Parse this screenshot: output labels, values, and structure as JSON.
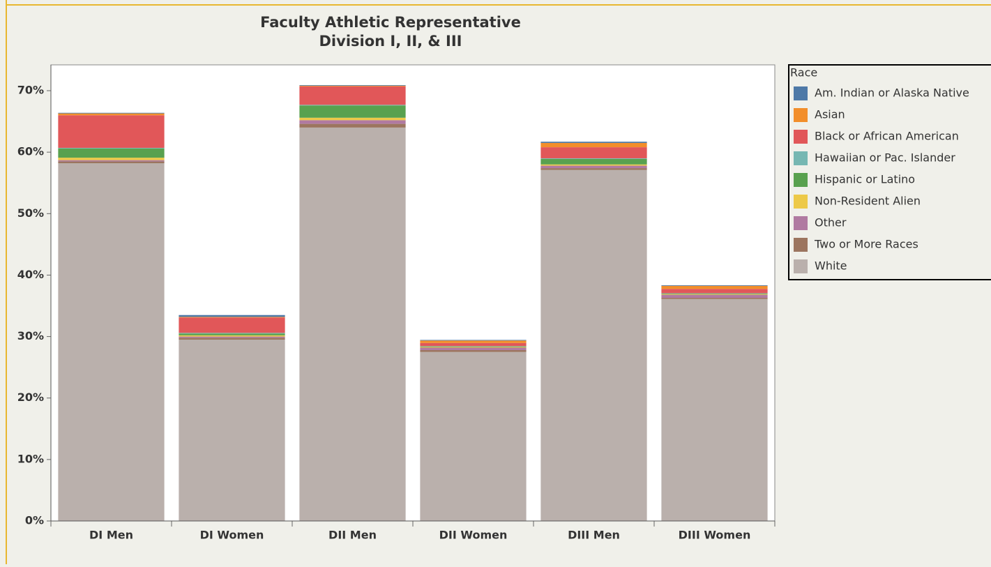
{
  "chart_data": {
    "type": "stacked_bar",
    "title": [
      "Faculty Athletic Representative",
      "Division I, II, & III"
    ],
    "legend_title": "Race",
    "legend": "right",
    "categories": [
      "DI Men",
      "DI Women",
      "DII Men",
      "DII Women",
      "DIII Men",
      "DIII Women"
    ],
    "series": [
      {
        "name": "Am. Indian or Alaska Native",
        "color": "#4e79a7",
        "values": [
          0.1,
          0.3,
          0.1,
          0.1,
          0.2,
          0.1
        ]
      },
      {
        "name": "Asian",
        "color": "#f28e2b",
        "values": [
          0.3,
          0.1,
          0.1,
          0.4,
          0.7,
          0.5
        ]
      },
      {
        "name": "Black or African American",
        "color": "#e15759",
        "values": [
          5.3,
          2.5,
          3.0,
          0.5,
          1.8,
          0.7
        ]
      },
      {
        "name": "Hawaiian or Pac. Islander",
        "color": "#76b7b2",
        "values": [
          0.1,
          0.1,
          0.1,
          0.05,
          0.1,
          0.05
        ]
      },
      {
        "name": "Hispanic or Latino",
        "color": "#59a14f",
        "values": [
          1.5,
          0.3,
          2.0,
          0.1,
          0.9,
          0.1
        ]
      },
      {
        "name": "Non-Resident Alien",
        "color": "#edc948",
        "values": [
          0.4,
          0.2,
          0.4,
          0.1,
          0.2,
          0.1
        ]
      },
      {
        "name": "Other",
        "color": "#b07aa1",
        "values": [
          0.2,
          0.2,
          0.6,
          0.4,
          0.4,
          0.5
        ]
      },
      {
        "name": "Two or More Races",
        "color": "#9c755f",
        "values": [
          0.3,
          0.3,
          0.6,
          0.3,
          0.3,
          0.2
        ]
      },
      {
        "name": "White",
        "color": "#bab0ac",
        "values": [
          58.2,
          29.5,
          64.0,
          27.5,
          57.1,
          36.1
        ]
      }
    ],
    "ylim": [
      0,
      74.2
    ],
    "yticks": [
      {
        "value": 0,
        "label": "0%"
      },
      {
        "value": 10,
        "label": "10%"
      },
      {
        "value": 20,
        "label": "20%"
      },
      {
        "value": 30,
        "label": "30%"
      },
      {
        "value": 40,
        "label": "40%"
      },
      {
        "value": 50,
        "label": "50%"
      },
      {
        "value": 60,
        "label": "60%"
      },
      {
        "value": 70,
        "label": "70%"
      }
    ]
  }
}
